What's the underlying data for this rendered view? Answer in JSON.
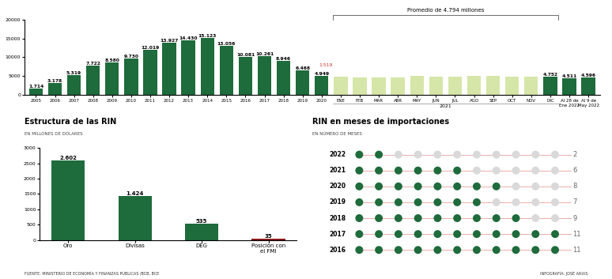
{
  "chart_data": [
    {
      "type": "bar",
      "categories": [
        "2005",
        "2006",
        "2007",
        "2008",
        "2009",
        "2010",
        "2011",
        "2012",
        "2013",
        "2014",
        "2015",
        "2016",
        "2017",
        "2018",
        "2019",
        "2020",
        "ENE",
        "FEB",
        "MAR",
        "ABR",
        "MAY",
        "JUN",
        "JUL",
        "AGO",
        "SEP",
        "OCT",
        "NOV",
        "DIC",
        "Al 28 de\nEne 2022",
        "Al 9 de\nMay 2022"
      ],
      "values": [
        1714,
        3178,
        5319,
        7722,
        8580,
        9730,
        12019,
        13927,
        14430,
        15123,
        13056,
        10081,
        10261,
        8946,
        6468,
        4949,
        4800,
        4700,
        4700,
        4700,
        5000,
        4800,
        4900,
        5100,
        5000,
        4900,
        4900,
        4752,
        4511,
        4596
      ],
      "value_labels": [
        "1.714",
        "3.178",
        "5.319",
        "7.722",
        "8.580",
        "9.730",
        "12.019",
        "13.927",
        "14.430",
        "15.123",
        "13.056",
        "10.081",
        "10.261",
        "8.946",
        "6.468",
        "4.949",
        null,
        null,
        null,
        null,
        null,
        null,
        null,
        null,
        null,
        null,
        null,
        "4.752",
        "4.511",
        "4.596"
      ],
      "colors": [
        "#1e6b3b",
        "#1e6b3b",
        "#1e6b3b",
        "#1e6b3b",
        "#1e6b3b",
        "#1e6b3b",
        "#1e6b3b",
        "#1e6b3b",
        "#1e6b3b",
        "#1e6b3b",
        "#1e6b3b",
        "#1e6b3b",
        "#1e6b3b",
        "#1e6b3b",
        "#1e6b3b",
        "#1e6b3b",
        "#d5e6a8",
        "#d5e6a8",
        "#d5e6a8",
        "#d5e6a8",
        "#d5e6a8",
        "#d5e6a8",
        "#d5e6a8",
        "#d5e6a8",
        "#d5e6a8",
        "#d5e6a8",
        "#d5e6a8",
        "#1e6b3b",
        "#1e6b3b",
        "#1e6b3b"
      ],
      "ylim": [
        0,
        20000
      ],
      "yticks": [
        0,
        5000,
        10000,
        15000,
        20000
      ],
      "data_labels": true,
      "annotations": [
        {
          "text": "1.519",
          "category": "2020",
          "color": "#d62828"
        }
      ],
      "bracket": {
        "text": "Promedio de 4.794 millones",
        "from": "ENE",
        "to": "DIC"
      },
      "group": {
        "text": "2021",
        "from": "ENE",
        "to": "DIC"
      }
    },
    {
      "type": "bar",
      "title": "Estructura de las RIN",
      "subtitle": "EN MILLONES DE DÓLARES",
      "categories": [
        "Oro",
        "Divisas",
        "DEG",
        "Posición con\nel FMI"
      ],
      "values": [
        2602,
        1424,
        535,
        35
      ],
      "value_labels": [
        "2.602",
        "1.424",
        "535",
        "35"
      ],
      "colors": [
        "#1e6b3b",
        "#1e6b3b",
        "#1e6b3b",
        "#8b1a1a"
      ],
      "ylim": [
        0,
        3000
      ],
      "yticks": [
        0,
        500,
        1000,
        1500,
        2000,
        2500,
        3000
      ],
      "data_labels": true
    },
    {
      "type": "dot",
      "title": "RIN en meses de importaciones",
      "subtitle": "EN NÚMERO DE MESES",
      "categories": [
        "2022",
        "2021",
        "2020",
        "2019",
        "2018",
        "2017",
        "2016"
      ],
      "values": [
        2,
        6,
        8,
        7,
        9,
        11,
        11
      ],
      "max_value": 11,
      "color": "#1e6b3b",
      "data_labels": true
    }
  ],
  "source": "FUENTE: MINISTERIO DE ECONOMÍA Y FINANZAS PÚBLICAS /BCB, BCE",
  "credit": "INFOGRAFÍA: JOSÉ ARIAS"
}
